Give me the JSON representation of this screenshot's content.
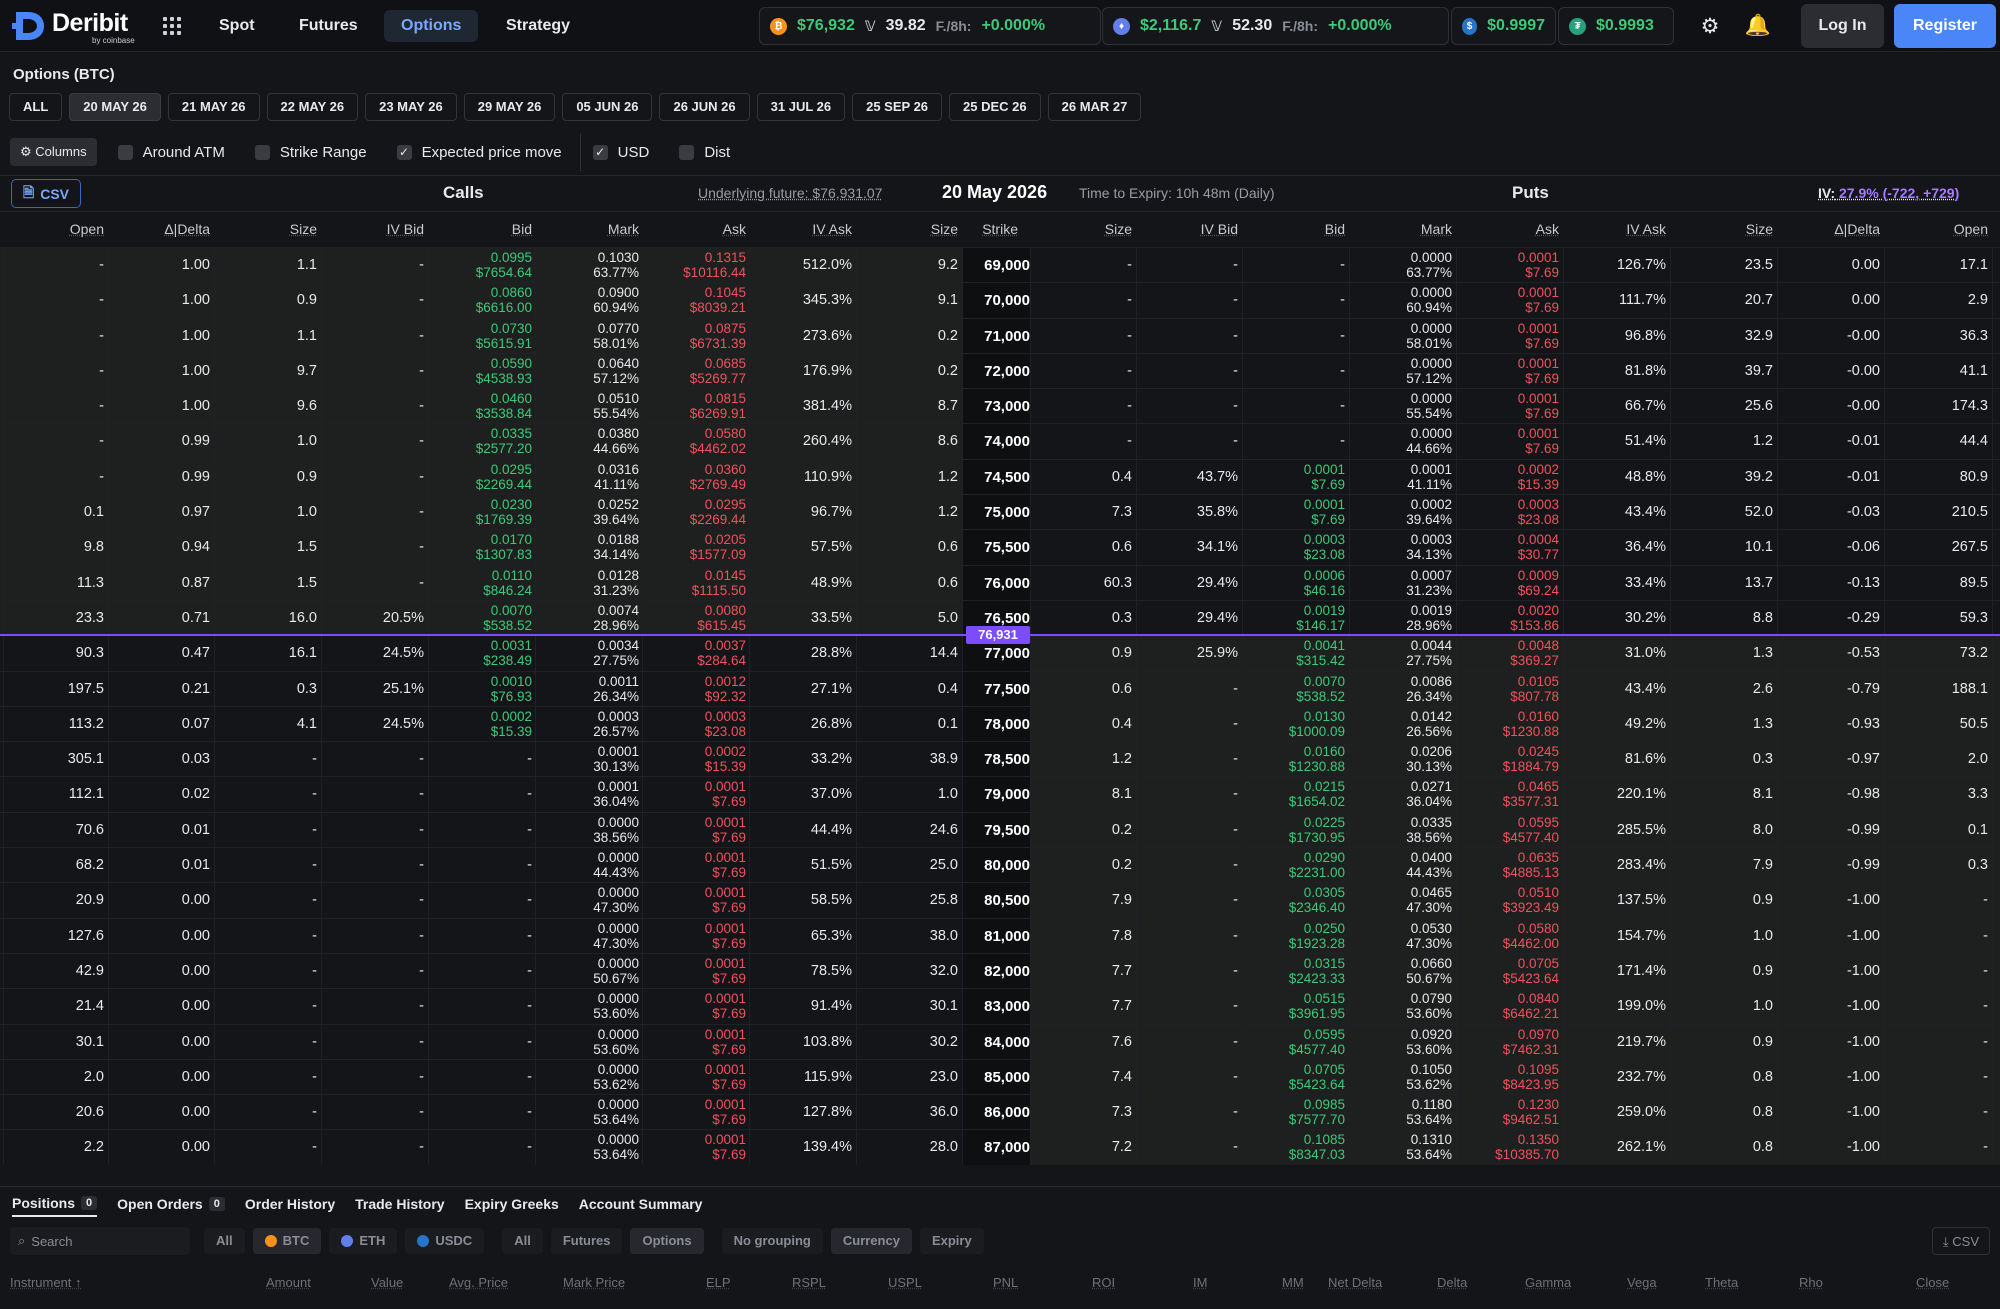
{
  "brand": {
    "name": "Deribit",
    "sub": "by coinbase"
  },
  "nav": {
    "spot": "Spot",
    "futures": "Futures",
    "options": "Options",
    "strategy": "Strategy"
  },
  "tickers": {
    "btc_price": "$76,932",
    "btc_dvol": "39.82",
    "btc_funding_label": "F./8h:",
    "btc_funding": "+0.000%",
    "eth_price": "$2,116.7",
    "eth_dvol": "52.30",
    "eth_funding_label": "F./8h:",
    "eth_funding": "+0.000%",
    "usdc_price": "$0.9997",
    "usdt_price": "$0.9993"
  },
  "auth": {
    "login": "Log In",
    "register": "Register"
  },
  "page_title": "Options (BTC)",
  "expiries": [
    "ALL",
    "20 MAY 26",
    "21 MAY 26",
    "22 MAY 26",
    "23 MAY 26",
    "29 MAY 26",
    "05 JUN 26",
    "26 JUN 26",
    "31 JUL 26",
    "25 SEP 26",
    "25 DEC 26",
    "26 MAR 27"
  ],
  "toolbar": {
    "columns": "Columns",
    "around_atm": "Around ATM",
    "strike_range": "Strike Range",
    "expected_move": "Expected price move",
    "usd": "USD",
    "dist": "Dist"
  },
  "info": {
    "csv": "CSV",
    "calls": "Calls",
    "puts": "Puts",
    "underlying": "Underlying future: $76,931.07",
    "expiry_date": "20 May 2026",
    "time_to_expiry": "Time to Expiry: 10h 48m (Daily)",
    "iv_label": "IV:",
    "iv_value": "27.9% (-722, +729)"
  },
  "headers": {
    "calls": [
      "Open",
      "Δ|Delta",
      "Size",
      "IV Bid",
      "Bid",
      "Mark",
      "Ask",
      "IV Ask",
      "Size"
    ],
    "strike": "Strike",
    "puts": [
      "Size",
      "IV Bid",
      "Bid",
      "Mark",
      "Ask",
      "IV Ask",
      "Size",
      "Δ|Delta",
      "Open"
    ]
  },
  "atm_price": "76,931",
  "rows": [
    {
      "strike": "69,000",
      "c": [
        "-",
        "1.00",
        "1.1",
        "-",
        [
          "0.0995",
          "$7654.64"
        ],
        [
          "0.1030",
          "63.77%"
        ],
        [
          "0.1315",
          "$10116.44"
        ],
        "512.0%",
        "9.2"
      ],
      "p": [
        "-",
        "-",
        "-",
        [
          "0.0000",
          "63.77%"
        ],
        [
          "0.0001",
          "$7.69"
        ],
        "126.7%",
        "23.5",
        "0.00",
        "17.1"
      ]
    },
    {
      "strike": "70,000",
      "c": [
        "-",
        "1.00",
        "0.9",
        "-",
        [
          "0.0860",
          "$6616.00"
        ],
        [
          "0.0900",
          "60.94%"
        ],
        [
          "0.1045",
          "$8039.21"
        ],
        "345.3%",
        "9.1"
      ],
      "p": [
        "-",
        "-",
        "-",
        [
          "0.0000",
          "60.94%"
        ],
        [
          "0.0001",
          "$7.69"
        ],
        "111.7%",
        "20.7",
        "0.00",
        "2.9"
      ]
    },
    {
      "strike": "71,000",
      "c": [
        "-",
        "1.00",
        "1.1",
        "-",
        [
          "0.0730",
          "$5615.91"
        ],
        [
          "0.0770",
          "58.01%"
        ],
        [
          "0.0875",
          "$6731.39"
        ],
        "273.6%",
        "0.2"
      ],
      "p": [
        "-",
        "-",
        "-",
        [
          "0.0000",
          "58.01%"
        ],
        [
          "0.0001",
          "$7.69"
        ],
        "96.8%",
        "32.9",
        "-0.00",
        "36.3"
      ]
    },
    {
      "strike": "72,000",
      "c": [
        "-",
        "1.00",
        "9.7",
        "-",
        [
          "0.0590",
          "$4538.93"
        ],
        [
          "0.0640",
          "57.12%"
        ],
        [
          "0.0685",
          "$5269.77"
        ],
        "176.9%",
        "0.2"
      ],
      "p": [
        "-",
        "-",
        "-",
        [
          "0.0000",
          "57.12%"
        ],
        [
          "0.0001",
          "$7.69"
        ],
        "81.8%",
        "39.7",
        "-0.00",
        "41.1"
      ]
    },
    {
      "strike": "73,000",
      "c": [
        "-",
        "1.00",
        "9.6",
        "-",
        [
          "0.0460",
          "$3538.84"
        ],
        [
          "0.0510",
          "55.54%"
        ],
        [
          "0.0815",
          "$6269.91"
        ],
        "381.4%",
        "8.7"
      ],
      "p": [
        "-",
        "-",
        "-",
        [
          "0.0000",
          "55.54%"
        ],
        [
          "0.0001",
          "$7.69"
        ],
        "66.7%",
        "25.6",
        "-0.00",
        "174.3"
      ]
    },
    {
      "strike": "74,000",
      "c": [
        "-",
        "0.99",
        "1.0",
        "-",
        [
          "0.0335",
          "$2577.20"
        ],
        [
          "0.0380",
          "44.66%"
        ],
        [
          "0.0580",
          "$4462.02"
        ],
        "260.4%",
        "8.6"
      ],
      "p": [
        "-",
        "-",
        "-",
        [
          "0.0000",
          "44.66%"
        ],
        [
          "0.0001",
          "$7.69"
        ],
        "51.4%",
        "1.2",
        "-0.01",
        "44.4"
      ]
    },
    {
      "strike": "74,500",
      "c": [
        "-",
        "0.99",
        "0.9",
        "-",
        [
          "0.0295",
          "$2269.44"
        ],
        [
          "0.0316",
          "41.11%"
        ],
        [
          "0.0360",
          "$2769.49"
        ],
        "110.9%",
        "1.2"
      ],
      "p": [
        "0.4",
        "43.7%",
        [
          "0.0001",
          "$7.69"
        ],
        [
          "0.0001",
          "41.11%"
        ],
        [
          "0.0002",
          "$15.39"
        ],
        "48.8%",
        "39.2",
        "-0.01",
        "80.9"
      ]
    },
    {
      "strike": "75,000",
      "c": [
        "0.1",
        "0.97",
        "1.0",
        "-",
        [
          "0.0230",
          "$1769.39"
        ],
        [
          "0.0252",
          "39.64%"
        ],
        [
          "0.0295",
          "$2269.44"
        ],
        "96.7%",
        "1.2"
      ],
      "p": [
        "7.3",
        "35.8%",
        [
          "0.0001",
          "$7.69"
        ],
        [
          "0.0002",
          "39.64%"
        ],
        [
          "0.0003",
          "$23.08"
        ],
        "43.4%",
        "52.0",
        "-0.03",
        "210.5"
      ]
    },
    {
      "strike": "75,500",
      "c": [
        "9.8",
        "0.94",
        "1.5",
        "-",
        [
          "0.0170",
          "$1307.83"
        ],
        [
          "0.0188",
          "34.14%"
        ],
        [
          "0.0205",
          "$1577.09"
        ],
        "57.5%",
        "0.6"
      ],
      "p": [
        "0.6",
        "34.1%",
        [
          "0.0003",
          "$23.08"
        ],
        [
          "0.0003",
          "34.13%"
        ],
        [
          "0.0004",
          "$30.77"
        ],
        "36.4%",
        "10.1",
        "-0.06",
        "267.5"
      ]
    },
    {
      "strike": "76,000",
      "c": [
        "11.3",
        "0.87",
        "1.5",
        "-",
        [
          "0.0110",
          "$846.24"
        ],
        [
          "0.0128",
          "31.23%"
        ],
        [
          "0.0145",
          "$1115.50"
        ],
        "48.9%",
        "0.6"
      ],
      "p": [
        "60.3",
        "29.4%",
        [
          "0.0006",
          "$46.16"
        ],
        [
          "0.0007",
          "31.23%"
        ],
        [
          "0.0009",
          "$69.24"
        ],
        "33.4%",
        "13.7",
        "-0.13",
        "89.5"
      ]
    },
    {
      "strike": "76,500",
      "c": [
        "23.3",
        "0.71",
        "16.0",
        "20.5%",
        [
          "0.0070",
          "$538.52"
        ],
        [
          "0.0074",
          "28.96%"
        ],
        [
          "0.0080",
          "$615.45"
        ],
        "33.5%",
        "5.0"
      ],
      "p": [
        "0.3",
        "29.4%",
        [
          "0.0019",
          "$146.17"
        ],
        [
          "0.0019",
          "28.96%"
        ],
        [
          "0.0020",
          "$153.86"
        ],
        "30.2%",
        "8.8",
        "-0.29",
        "59.3"
      ]
    },
    {
      "strike": "77,000",
      "c": [
        "90.3",
        "0.47",
        "16.1",
        "24.5%",
        [
          "0.0031",
          "$238.49"
        ],
        [
          "0.0034",
          "27.75%"
        ],
        [
          "0.0037",
          "$284.64"
        ],
        "28.8%",
        "14.4"
      ],
      "p": [
        "0.9",
        "25.9%",
        [
          "0.0041",
          "$315.42"
        ],
        [
          "0.0044",
          "27.75%"
        ],
        [
          "0.0048",
          "$369.27"
        ],
        "31.0%",
        "1.3",
        "-0.53",
        "73.2"
      ]
    },
    {
      "strike": "77,500",
      "c": [
        "197.5",
        "0.21",
        "0.3",
        "25.1%",
        [
          "0.0010",
          "$76.93"
        ],
        [
          "0.0011",
          "26.34%"
        ],
        [
          "0.0012",
          "$92.32"
        ],
        "27.1%",
        "0.4"
      ],
      "p": [
        "0.6",
        "-",
        [
          "0.0070",
          "$538.52"
        ],
        [
          "0.0086",
          "26.34%"
        ],
        [
          "0.0105",
          "$807.78"
        ],
        "43.4%",
        "2.6",
        "-0.79",
        "188.1"
      ]
    },
    {
      "strike": "78,000",
      "c": [
        "113.2",
        "0.07",
        "4.1",
        "24.5%",
        [
          "0.0002",
          "$15.39"
        ],
        [
          "0.0003",
          "26.57%"
        ],
        [
          "0.0003",
          "$23.08"
        ],
        "26.8%",
        "0.1"
      ],
      "p": [
        "0.4",
        "-",
        [
          "0.0130",
          "$1000.09"
        ],
        [
          "0.0142",
          "26.56%"
        ],
        [
          "0.0160",
          "$1230.88"
        ],
        "49.2%",
        "1.3",
        "-0.93",
        "50.5"
      ]
    },
    {
      "strike": "78,500",
      "c": [
        "305.1",
        "0.03",
        "-",
        "-",
        "-",
        [
          "0.0001",
          "30.13%"
        ],
        [
          "0.0002",
          "$15.39"
        ],
        "33.2%",
        "38.9"
      ],
      "p": [
        "1.2",
        "-",
        [
          "0.0160",
          "$1230.88"
        ],
        [
          "0.0206",
          "30.13%"
        ],
        [
          "0.0245",
          "$1884.79"
        ],
        "81.6%",
        "0.3",
        "-0.97",
        "2.0"
      ]
    },
    {
      "strike": "79,000",
      "c": [
        "112.1",
        "0.02",
        "-",
        "-",
        "-",
        [
          "0.0001",
          "36.04%"
        ],
        [
          "0.0001",
          "$7.69"
        ],
        "37.0%",
        "1.0"
      ],
      "p": [
        "8.1",
        "-",
        [
          "0.0215",
          "$1654.02"
        ],
        [
          "0.0271",
          "36.04%"
        ],
        [
          "0.0465",
          "$3577.31"
        ],
        "220.1%",
        "8.1",
        "-0.98",
        "3.3"
      ]
    },
    {
      "strike": "79,500",
      "c": [
        "70.6",
        "0.01",
        "-",
        "-",
        "-",
        [
          "0.0000",
          "38.56%"
        ],
        [
          "0.0001",
          "$7.69"
        ],
        "44.4%",
        "24.6"
      ],
      "p": [
        "0.2",
        "-",
        [
          "0.0225",
          "$1730.95"
        ],
        [
          "0.0335",
          "38.56%"
        ],
        [
          "0.0595",
          "$4577.40"
        ],
        "285.5%",
        "8.0",
        "-0.99",
        "0.1"
      ]
    },
    {
      "strike": "80,000",
      "c": [
        "68.2",
        "0.01",
        "-",
        "-",
        "-",
        [
          "0.0000",
          "44.43%"
        ],
        [
          "0.0001",
          "$7.69"
        ],
        "51.5%",
        "25.0"
      ],
      "p": [
        "0.2",
        "-",
        [
          "0.0290",
          "$2231.00"
        ],
        [
          "0.0400",
          "44.43%"
        ],
        [
          "0.0635",
          "$4885.13"
        ],
        "283.4%",
        "7.9",
        "-0.99",
        "0.3"
      ]
    },
    {
      "strike": "80,500",
      "c": [
        "20.9",
        "0.00",
        "-",
        "-",
        "-",
        [
          "0.0000",
          "47.30%"
        ],
        [
          "0.0001",
          "$7.69"
        ],
        "58.5%",
        "25.8"
      ],
      "p": [
        "7.9",
        "-",
        [
          "0.0305",
          "$2346.40"
        ],
        [
          "0.0465",
          "47.30%"
        ],
        [
          "0.0510",
          "$3923.49"
        ],
        "137.5%",
        "0.9",
        "-1.00",
        "-"
      ]
    },
    {
      "strike": "81,000",
      "c": [
        "127.6",
        "0.00",
        "-",
        "-",
        "-",
        [
          "0.0000",
          "47.30%"
        ],
        [
          "0.0001",
          "$7.69"
        ],
        "65.3%",
        "38.0"
      ],
      "p": [
        "7.8",
        "-",
        [
          "0.0250",
          "$1923.28"
        ],
        [
          "0.0530",
          "47.30%"
        ],
        [
          "0.0580",
          "$4462.00"
        ],
        "154.7%",
        "1.0",
        "-1.00",
        "-"
      ]
    },
    {
      "strike": "82,000",
      "c": [
        "42.9",
        "0.00",
        "-",
        "-",
        "-",
        [
          "0.0000",
          "50.67%"
        ],
        [
          "0.0001",
          "$7.69"
        ],
        "78.5%",
        "32.0"
      ],
      "p": [
        "7.7",
        "-",
        [
          "0.0315",
          "$2423.33"
        ],
        [
          "0.0660",
          "50.67%"
        ],
        [
          "0.0705",
          "$5423.64"
        ],
        "171.4%",
        "0.9",
        "-1.00",
        "-"
      ]
    },
    {
      "strike": "83,000",
      "c": [
        "21.4",
        "0.00",
        "-",
        "-",
        "-",
        [
          "0.0000",
          "53.60%"
        ],
        [
          "0.0001",
          "$7.69"
        ],
        "91.4%",
        "30.1"
      ],
      "p": [
        "7.7",
        "-",
        [
          "0.0515",
          "$3961.95"
        ],
        [
          "0.0790",
          "53.60%"
        ],
        [
          "0.0840",
          "$6462.21"
        ],
        "199.0%",
        "1.0",
        "-1.00",
        "-"
      ]
    },
    {
      "strike": "84,000",
      "c": [
        "30.1",
        "0.00",
        "-",
        "-",
        "-",
        [
          "0.0000",
          "53.60%"
        ],
        [
          "0.0001",
          "$7.69"
        ],
        "103.8%",
        "30.2"
      ],
      "p": [
        "7.6",
        "-",
        [
          "0.0595",
          "$4577.40"
        ],
        [
          "0.0920",
          "53.60%"
        ],
        [
          "0.0970",
          "$7462.31"
        ],
        "219.7%",
        "0.9",
        "-1.00",
        "-"
      ]
    },
    {
      "strike": "85,000",
      "c": [
        "2.0",
        "0.00",
        "-",
        "-",
        "-",
        [
          "0.0000",
          "53.62%"
        ],
        [
          "0.0001",
          "$7.69"
        ],
        "115.9%",
        "23.0"
      ],
      "p": [
        "7.4",
        "-",
        [
          "0.0705",
          "$5423.64"
        ],
        [
          "0.1050",
          "53.62%"
        ],
        [
          "0.1095",
          "$8423.95"
        ],
        "232.7%",
        "0.8",
        "-1.00",
        "-"
      ]
    },
    {
      "strike": "86,000",
      "c": [
        "20.6",
        "0.00",
        "-",
        "-",
        "-",
        [
          "0.0000",
          "53.64%"
        ],
        [
          "0.0001",
          "$7.69"
        ],
        "127.8%",
        "36.0"
      ],
      "p": [
        "7.3",
        "-",
        [
          "0.0985",
          "$7577.70"
        ],
        [
          "0.1180",
          "53.64%"
        ],
        [
          "0.1230",
          "$9462.51"
        ],
        "259.0%",
        "0.8",
        "-1.00",
        "-"
      ]
    },
    {
      "strike": "87,000",
      "c": [
        "2.2",
        "0.00",
        "-",
        "-",
        "-",
        [
          "0.0000",
          "53.64%"
        ],
        [
          "0.0001",
          "$7.69"
        ],
        "139.4%",
        "28.0"
      ],
      "p": [
        "7.2",
        "-",
        [
          "0.1085",
          "$8347.03"
        ],
        [
          "0.1310",
          "53.64%"
        ],
        [
          "0.1350",
          "$10385.70"
        ],
        "262.1%",
        "0.8",
        "-1.00",
        "-"
      ]
    }
  ],
  "bottom": {
    "tabs": [
      {
        "label": "Positions",
        "count": "0"
      },
      {
        "label": "Open Orders",
        "count": "0"
      },
      {
        "label": "Order History",
        "count": ""
      },
      {
        "label": "Trade History",
        "count": ""
      },
      {
        "label": "Expiry Greeks",
        "count": ""
      },
      {
        "label": "Account Summary",
        "count": ""
      }
    ],
    "search_placeholder": "Search",
    "filters": [
      "All",
      "BTC",
      "ETH",
      "USDC",
      "All",
      "Futures",
      "Options",
      "No grouping",
      "Currency",
      "Expiry"
    ],
    "csv": "CSV",
    "columns": [
      "Instrument ↑",
      "Amount",
      "Value",
      "Avg. Price",
      "Mark Price",
      "ELP",
      "RSPL",
      "USPL",
      "PNL",
      "ROI",
      "IM",
      "MM",
      "Net Delta",
      "Delta",
      "Gamma",
      "Vega",
      "Theta",
      "Rho",
      "Close"
    ]
  },
  "colors": {
    "accent": "#7aa7ff",
    "bid": "#3ec97a",
    "ask": "#f0525e",
    "atm": "#7c4dff",
    "register": "#4a86f7"
  }
}
